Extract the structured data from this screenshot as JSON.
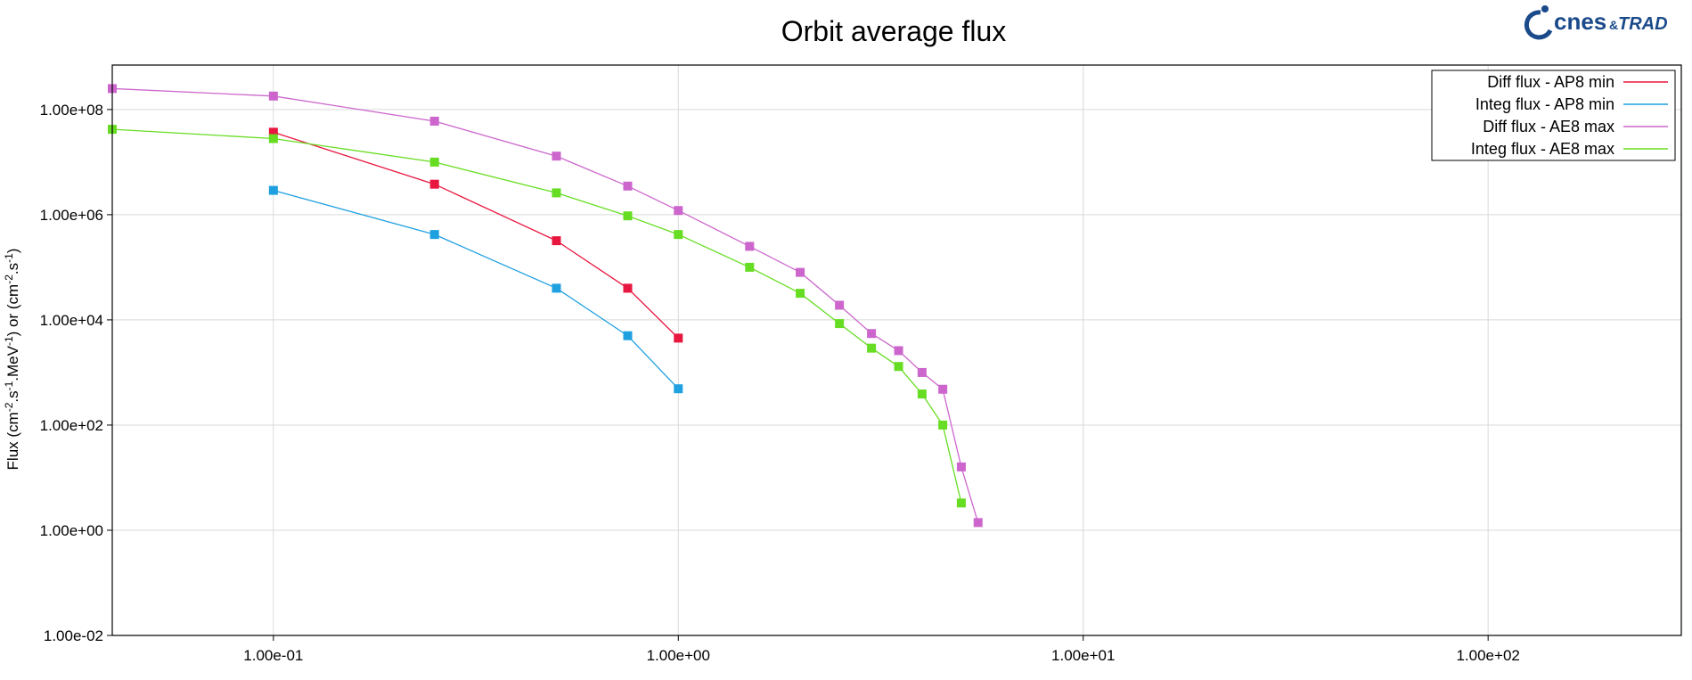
{
  "chart_data": {
    "type": "line",
    "title": "Orbit average flux",
    "xlabel": "",
    "ylabel": "Flux (cm-2.s-1.MeV-1) or (cm-2.s-1)",
    "x_scale": "log",
    "y_scale": "log",
    "xlim": [
      0.04,
      300
    ],
    "ylim": [
      0.01,
      700000000
    ],
    "x_ticks": [
      {
        "value": 0.1,
        "label": "1.00e-01"
      },
      {
        "value": 1,
        "label": "1.00e+00"
      },
      {
        "value": 10,
        "label": "1.00e+01"
      },
      {
        "value": 100,
        "label": "1.00e+02"
      }
    ],
    "y_ticks": [
      {
        "value": 0.01,
        "label": "1.00e-02"
      },
      {
        "value": 1,
        "label": "1.00e+00"
      },
      {
        "value": 100,
        "label": "1.00e+02"
      },
      {
        "value": 10000,
        "label": "1.00e+04"
      },
      {
        "value": 1000000,
        "label": "1.00e+06"
      },
      {
        "value": 100000000,
        "label": "1.00e+08"
      }
    ],
    "grid": true,
    "legend_position": "top-right",
    "series": [
      {
        "name": "Diff flux - AP8 min",
        "color": "#e8173f",
        "x": [
          0.1,
          0.25,
          0.5,
          0.75,
          1.0
        ],
        "y": [
          37000000,
          3800000,
          320000,
          40000,
          4500
        ]
      },
      {
        "name": "Integ flux - AP8 min",
        "color": "#1fa0e0",
        "x": [
          0.1,
          0.25,
          0.5,
          0.75,
          1.0
        ],
        "y": [
          2900000,
          420000,
          40000,
          5000,
          490
        ]
      },
      {
        "name": "Diff flux - AE8 max",
        "color": "#cc66cc",
        "x": [
          0.04,
          0.1,
          0.25,
          0.5,
          0.75,
          1.0,
          1.5,
          2.0,
          2.5,
          3.0,
          3.5,
          4.0,
          4.5,
          5.0,
          5.5
        ],
        "y": [
          250000000,
          180000000,
          60000000,
          13000000,
          3500000,
          1200000,
          250000,
          80000,
          19000,
          5500,
          2600,
          1000,
          480,
          16,
          1.4
        ]
      },
      {
        "name": "Integ flux - AE8 max",
        "color": "#66dd22",
        "x": [
          0.04,
          0.1,
          0.25,
          0.5,
          0.75,
          1.0,
          1.5,
          2.0,
          2.5,
          3.0,
          3.5,
          4.0,
          4.5,
          5.0
        ],
        "y": [
          42000000,
          28000000,
          10000000,
          2600000,
          950000,
          420000,
          100000,
          32000,
          8500,
          2900,
          1300,
          390,
          100,
          3.3
        ]
      }
    ]
  },
  "logo": {
    "main": "cnes",
    "amp": "&",
    "sub": "TRAD"
  }
}
